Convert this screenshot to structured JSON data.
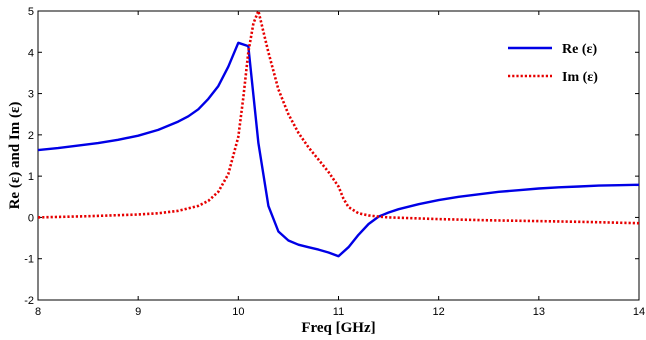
{
  "chart_data": {
    "type": "line",
    "title": "",
    "xlabel": "Freq [GHz]",
    "ylabel": "Re (ε) and Im (ε)",
    "xlim": [
      8,
      14
    ],
    "ylim": [
      -2,
      5
    ],
    "xticks": [
      "8",
      "9",
      "10",
      "11",
      "12",
      "13",
      "14"
    ],
    "yticks": [
      "-2",
      "-1",
      "0",
      "1",
      "2",
      "3",
      "4",
      "5"
    ],
    "grid": false,
    "legend_position": "top-right",
    "series": [
      {
        "name": "Re (ε)",
        "color": "#0000e6",
        "style": "solid",
        "x": [
          8.0,
          8.2,
          8.4,
          8.6,
          8.8,
          9.0,
          9.2,
          9.4,
          9.5,
          9.6,
          9.7,
          9.8,
          9.9,
          10.0,
          10.1,
          10.2,
          10.3,
          10.4,
          10.5,
          10.6,
          10.7,
          10.8,
          10.9,
          11.0,
          11.1,
          11.2,
          11.3,
          11.4,
          11.5,
          11.6,
          11.8,
          12.0,
          12.2,
          12.4,
          12.6,
          12.8,
          13.0,
          13.2,
          13.4,
          13.6,
          13.8,
          14.0
        ],
        "y": [
          1.63,
          1.68,
          1.74,
          1.8,
          1.88,
          1.98,
          2.12,
          2.32,
          2.45,
          2.62,
          2.87,
          3.18,
          3.65,
          4.23,
          4.15,
          1.8,
          0.28,
          -0.34,
          -0.56,
          -0.66,
          -0.72,
          -0.78,
          -0.85,
          -0.94,
          -0.72,
          -0.42,
          -0.16,
          0.02,
          0.12,
          0.2,
          0.32,
          0.42,
          0.5,
          0.56,
          0.62,
          0.66,
          0.7,
          0.73,
          0.75,
          0.77,
          0.78,
          0.79
        ]
      },
      {
        "name": "Im (ε)",
        "color": "#e60000",
        "style": "dotted",
        "x": [
          8.0,
          8.5,
          9.0,
          9.2,
          9.4,
          9.6,
          9.7,
          9.8,
          9.9,
          10.0,
          10.05,
          10.1,
          10.15,
          10.2,
          10.3,
          10.4,
          10.5,
          10.6,
          10.7,
          10.8,
          10.9,
          11.0,
          11.05,
          11.1,
          11.2,
          11.3,
          11.4,
          11.5,
          12.0,
          12.5,
          13.0,
          13.5,
          14.0
        ],
        "y": [
          0.0,
          0.03,
          0.07,
          0.1,
          0.16,
          0.28,
          0.4,
          0.62,
          1.05,
          1.95,
          2.9,
          4.0,
          4.7,
          5.0,
          4.0,
          3.1,
          2.5,
          2.05,
          1.7,
          1.4,
          1.1,
          0.75,
          0.45,
          0.25,
          0.1,
          0.05,
          0.02,
          0.0,
          -0.04,
          -0.07,
          -0.09,
          -0.11,
          -0.14
        ]
      }
    ]
  }
}
